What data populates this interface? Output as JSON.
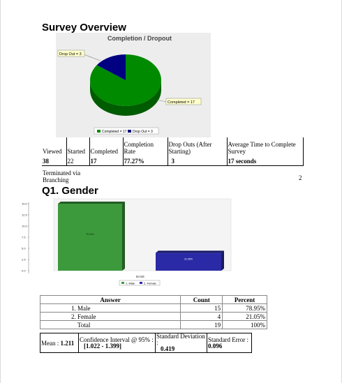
{
  "survey_overview": {
    "title": "Survey Overview",
    "chart_data": {
      "type": "pie",
      "title": "Completion / Dropout",
      "categories": [
        "Completed",
        "Drop Out"
      ],
      "values": [
        17,
        3
      ],
      "colors": [
        "#008a00",
        "#000080"
      ],
      "callouts": [
        "Drop Out = 3",
        "Completed = 17"
      ],
      "legend": [
        "Completed = 17",
        "Drop Out = 3"
      ],
      "legend_position": "bottom"
    },
    "headers": [
      "Viewed",
      "Started",
      "Completed",
      "Completion Rate",
      "Drop Outs (After Starting)",
      "Average Time to Complete Survey"
    ],
    "values": [
      "38",
      "22",
      "17",
      "77.27%",
      "3",
      "17 seconds"
    ],
    "terminated_label": "Terminated via Branching",
    "terminated_value": "2"
  },
  "q1": {
    "title": "Q1. Gender",
    "chart_data": {
      "type": "bar",
      "categories": [
        "BASE"
      ],
      "series": [
        {
          "name": "1. Male",
          "values": [
            15
          ],
          "label": "78.95%"
        },
        {
          "name": "2. Female",
          "values": [
            4
          ],
          "label": "21.05%"
        }
      ],
      "xlabel": "BASE",
      "ylim": [
        0,
        15
      ],
      "yticks": [
        "0.0",
        "2.5",
        "5.0",
        "7.5",
        "10.0",
        "12.5",
        "15.0"
      ],
      "colors": [
        "#3c9a3c",
        "#2a2aa6"
      ],
      "legend": [
        "1. Male",
        "2. Female"
      ],
      "legend_position": "bottom",
      "grid": false
    },
    "table": {
      "headers": [
        "Answer",
        "Count",
        "Percent"
      ],
      "rows": [
        {
          "answer": "1. Male",
          "count": "15",
          "percent": "78.95%"
        },
        {
          "answer": "2. Female",
          "count": "4",
          "percent": "21.05%"
        },
        {
          "answer": "Total",
          "count": "19",
          "percent": "100%"
        }
      ]
    },
    "stats": {
      "mean_label": "Mean :",
      "mean": "1.211",
      "ci_label": "Confidence Interval @ 95% :",
      "ci_value": "[1.022 - 1.399]",
      "sd_label": "Standard Deviation :",
      "sd_value": "0.419",
      "se_label": "Standard Error :",
      "se_value": "0.096"
    }
  }
}
